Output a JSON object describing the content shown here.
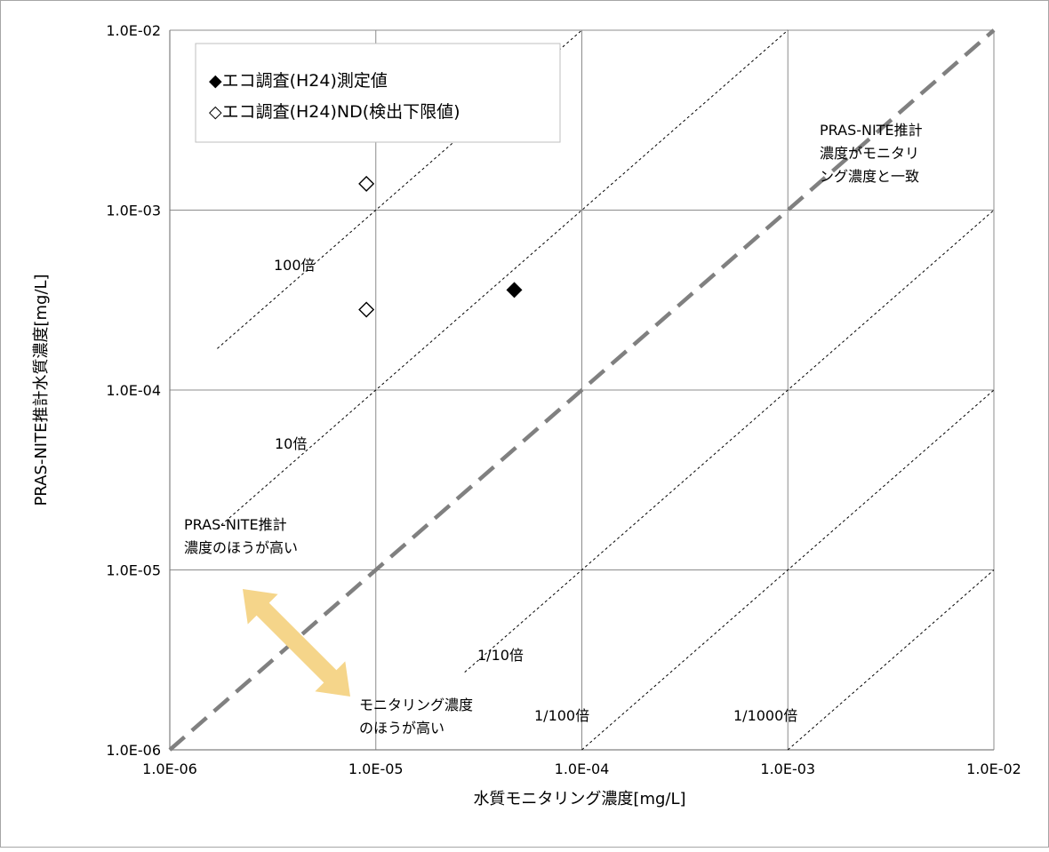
{
  "chart_data": {
    "type": "scatter",
    "x_scale": "log",
    "y_scale": "log",
    "xlim": [
      1e-06,
      0.01
    ],
    "ylim": [
      1e-06,
      0.01
    ],
    "grid": true,
    "xlabel": "水質モニタリング濃度[mg/L]",
    "ylabel": "PRAS-NITE推計水質濃度[mg/L]",
    "x_tick_labels": [
      "1.0E-06",
      "1.0E-05",
      "1.0E-04",
      "1.0E-03",
      "1.0E-02"
    ],
    "y_tick_labels": [
      "1.0E-06",
      "1.0E-05",
      "1.0E-04",
      "1.0E-03",
      "1.0E-02"
    ],
    "legend_position": "top-left",
    "series": [
      {
        "name": "◆エコ調査(H24)測定値",
        "marker": "filled-diamond",
        "color": "#000000",
        "points": [
          {
            "x": 4.7e-05,
            "y": 0.00036
          }
        ]
      },
      {
        "name": "◇エコ調査(H24)ND(検出下限値)",
        "marker": "hollow-diamond",
        "color": "#000000",
        "points": [
          {
            "x": 9e-06,
            "y": 0.0014
          },
          {
            "x": 9e-06,
            "y": 0.00028
          }
        ]
      }
    ],
    "reference_lines": [
      {
        "label": "100倍",
        "factor": 100,
        "style": "dotted",
        "color": "#000000"
      },
      {
        "label": "10倍",
        "factor": 10,
        "style": "dotted",
        "color": "#000000"
      },
      {
        "label": "1/10倍",
        "factor": 0.1,
        "style": "dotted",
        "color": "#000000"
      },
      {
        "label": "1/100倍",
        "factor": 0.01,
        "style": "dotted",
        "color": "#000000"
      },
      {
        "label": "1/1000倍",
        "factor": 0.001,
        "style": "dotted",
        "color": "#000000"
      },
      {
        "label": "",
        "factor": 1,
        "style": "dashed",
        "color": "#808080"
      }
    ],
    "annotations": [
      {
        "lines": [
          "PRAS-NITE推計",
          "濃度がモニタリ",
          "ング濃度と一致"
        ]
      },
      {
        "lines": [
          "PRAS-NITE推計",
          "濃度のほうが高い"
        ]
      },
      {
        "lines": [
          "モニタリング濃度",
          "のほうが高い"
        ]
      }
    ],
    "arrow_color": "#f5d58a"
  }
}
